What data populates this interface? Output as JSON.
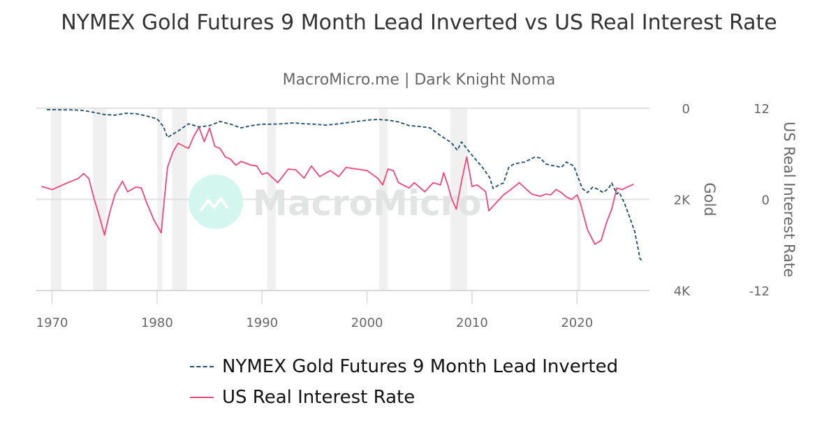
{
  "chart_data": {
    "type": "line",
    "title": "NYMEX Gold Futures 9 Month Lead Inverted vs US Real Interest Rate",
    "subtitle": "MacroMicro.me | Dark Knight Noma",
    "watermark": "MacroMicro",
    "x_ticks": [
      "1970",
      "1980",
      "1990",
      "2000",
      "2010",
      "2020"
    ],
    "xlim": [
      1968.5,
      2026.9
    ],
    "grid": true,
    "legend_position": "bottom",
    "axes": {
      "gold": {
        "label": "Gold",
        "ticks": [
          "0",
          "2K",
          "4K"
        ],
        "range": [
          0,
          4000
        ],
        "inverted": true
      },
      "rate": {
        "label": "US Real Interest Rate",
        "ticks": [
          "12",
          "0",
          "-12"
        ],
        "range": [
          -12,
          12
        ]
      }
    },
    "recessions": [
      [
        1969.9,
        1970.9
      ],
      [
        1973.9,
        1975.2
      ],
      [
        1980.05,
        1980.5
      ],
      [
        1981.45,
        1982.85
      ],
      [
        1990.5,
        1991.3
      ],
      [
        2001.15,
        2001.95
      ],
      [
        2007.95,
        2009.55
      ],
      [
        2020.0,
        2020.35
      ]
    ],
    "series": [
      {
        "name": "NYMEX Gold Futures 9 Month Lead Inverted",
        "axis": "gold",
        "color": "#1a4a6e",
        "style": "dashed",
        "x": [
          1969.5,
          1972,
          1973,
          1974,
          1975,
          1976,
          1977,
          1978,
          1979,
          1980,
          1980.6,
          1981,
          1981.5,
          1982,
          1983,
          1984,
          1985,
          1986,
          1987,
          1988,
          1989,
          1990,
          1991,
          1992,
          1993,
          1994,
          1995,
          1996,
          1997,
          1998,
          1999,
          2000,
          2001,
          2002,
          2003,
          2004,
          2005,
          2006,
          2007,
          2008,
          2008.6,
          2009,
          2010,
          2011,
          2011.7,
          2012,
          2012.5,
          2013,
          2013.5,
          2014,
          2015,
          2016,
          2016.5,
          2017,
          2017.5,
          2018,
          2018.5,
          2019,
          2019.7,
          2020,
          2020.5,
          2021,
          2021.5,
          2022,
          2022.5,
          2023,
          2023.3,
          2023.8,
          2024,
          2024.5,
          2025,
          2025.5,
          2026,
          2026.3
        ],
        "y": [
          30,
          35,
          50,
          90,
          140,
          150,
          110,
          120,
          170,
          230,
          400,
          640,
          570,
          500,
          340,
          410,
          380,
          290,
          350,
          430,
          380,
          350,
          350,
          340,
          320,
          340,
          350,
          370,
          350,
          320,
          290,
          260,
          245,
          260,
          300,
          380,
          400,
          430,
          600,
          750,
          920,
          740,
          1030,
          1300,
          1530,
          1760,
          1690,
          1640,
          1300,
          1220,
          1180,
          1070,
          1090,
          1220,
          1250,
          1270,
          1300,
          1180,
          1270,
          1460,
          1760,
          1850,
          1730,
          1780,
          1850,
          1760,
          1640,
          1880,
          1840,
          2070,
          2380,
          2710,
          3300,
          3370
        ]
      },
      {
        "name": "US Real Interest Rate",
        "axis": "rate",
        "color": "#f0457a",
        "style": "solid",
        "x": [
          1969,
          1970,
          1971.5,
          1972.5,
          1973,
          1973.5,
          1974,
          1974.5,
          1975,
          1975.5,
          1976,
          1976.7,
          1977.2,
          1978,
          1978.5,
          1979,
          1979.7,
          1980.4,
          1980.6,
          1981,
          1981.5,
          1982,
          1982.7,
          1983,
          1983.5,
          1984,
          1984.5,
          1985,
          1985.5,
          1986,
          1986.5,
          1987,
          1987.5,
          1988,
          1989,
          1989.5,
          1990,
          1990.5,
          1991.5,
          1992.5,
          1993.2,
          1994,
          1994.7,
          1995.5,
          1996.5,
          1997.3,
          1998,
          1999,
          2000,
          2001,
          2001.5,
          2002,
          2002.5,
          2003,
          2004,
          2004.5,
          2005.5,
          2006.3,
          2007,
          2007.3,
          2007.7,
          2008,
          2008.5,
          2009,
          2009.5,
          2009.8,
          2010,
          2010.5,
          2011.3,
          2011.6,
          2012.2,
          2013,
          2013.7,
          2014.5,
          2015.2,
          2015.7,
          2016.5,
          2017,
          2017.5,
          2018,
          2018.5,
          2019,
          2019.5,
          2020,
          2020.3,
          2021,
          2021.7,
          2022.3,
          2022.8,
          2023.3,
          2023.8,
          2024.3,
          2024.8,
          2025.4
        ],
        "y": [
          1.7,
          1.3,
          2.2,
          2.75,
          3.4,
          2.75,
          0.1,
          -2.2,
          -4.7,
          -1.7,
          0.7,
          2.4,
          1.0,
          1.65,
          1.5,
          -0.4,
          -2.7,
          -4.4,
          -1.3,
          4.2,
          6.2,
          7.4,
          6.9,
          6.7,
          8.3,
          9.5,
          7.6,
          9.4,
          7.0,
          6.7,
          5.6,
          5.3,
          4.5,
          5.0,
          4.5,
          4.4,
          3.3,
          3.5,
          2.2,
          4.0,
          3.9,
          2.8,
          4.4,
          3.0,
          3.8,
          3.0,
          4.2,
          4.0,
          3.8,
          2.8,
          1.9,
          4.0,
          3.8,
          2.2,
          1.5,
          2.2,
          1.0,
          2.2,
          1.9,
          3.5,
          1.9,
          0.3,
          -1.3,
          2.4,
          5.6,
          3.3,
          1.7,
          1.9,
          1.0,
          -1.5,
          -0.6,
          0.6,
          1.3,
          2.2,
          1.3,
          0.7,
          0.4,
          0.7,
          0.6,
          1.3,
          0.9,
          0.3,
          0.0,
          0.6,
          -0.4,
          -4.0,
          -5.9,
          -5.4,
          -3.1,
          -1.3,
          1.5,
          1.3,
          1.65,
          2.0
        ]
      }
    ]
  }
}
